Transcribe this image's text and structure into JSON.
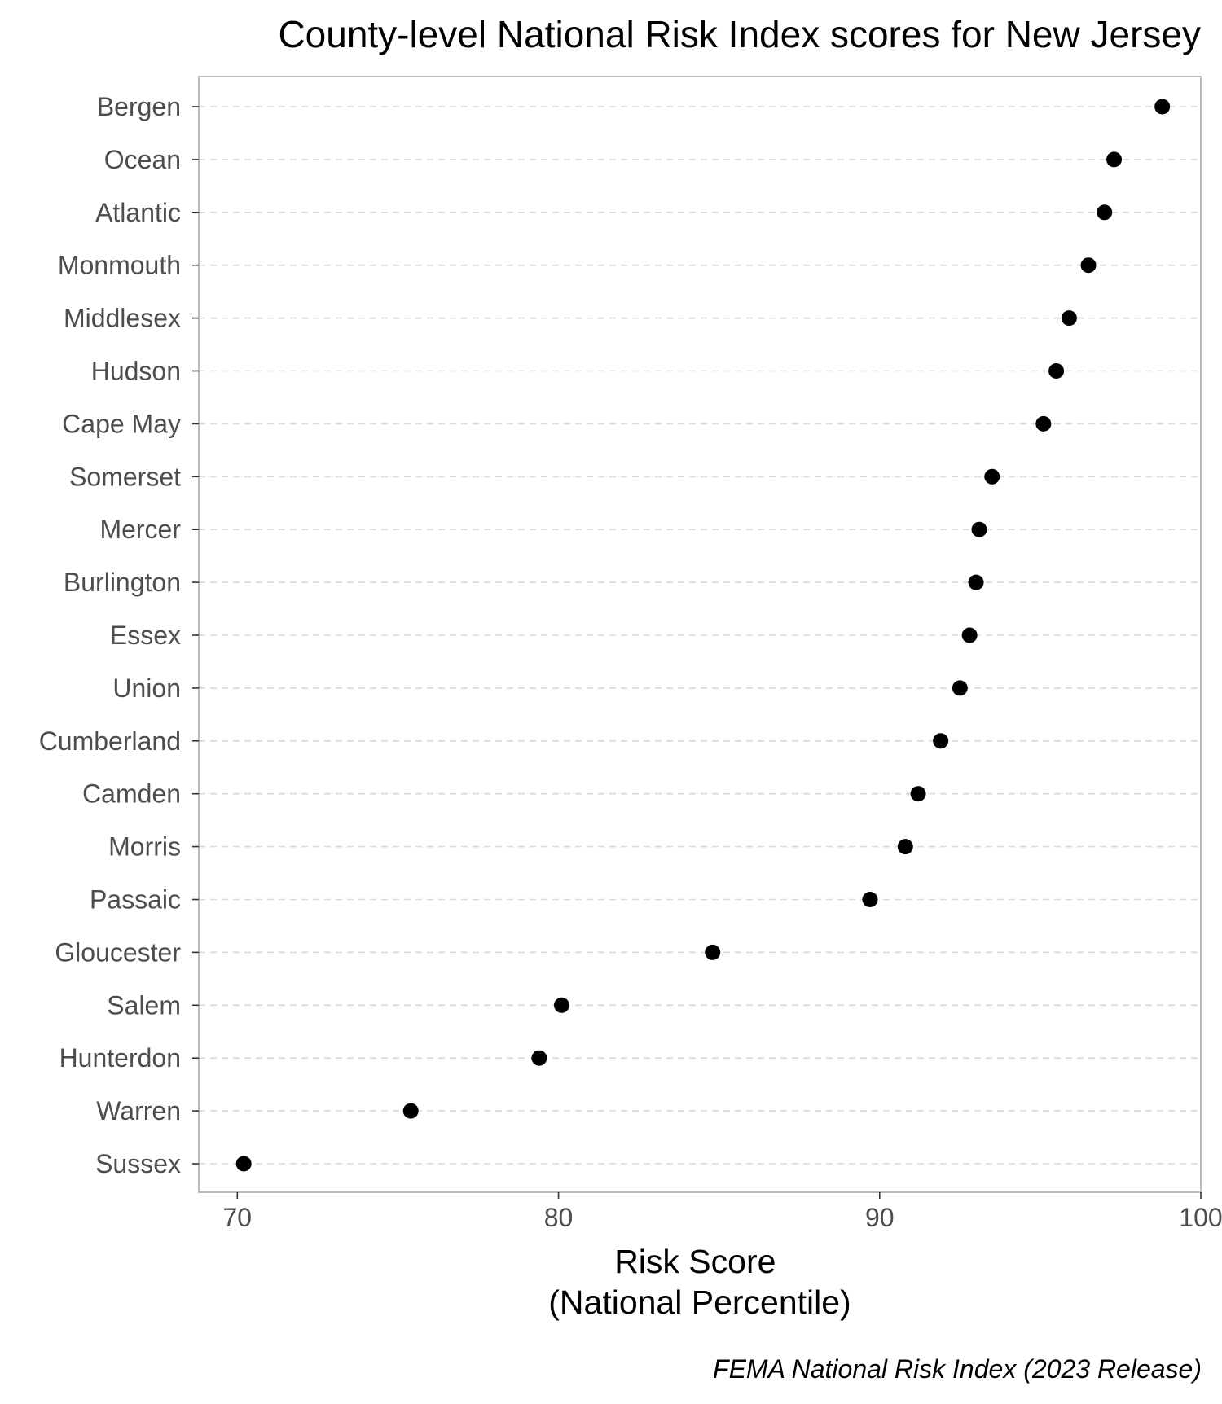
{
  "chart_data": {
    "type": "scatter",
    "title": "County-level National Risk Index scores for New Jersey",
    "xlabel_lines": [
      "Risk Score",
      "(National Percentile)"
    ],
    "ylabel": "",
    "caption": "FEMA National Risk Index (2023 Release)",
    "xlim": [
      68.8,
      100
    ],
    "x_ticks": [
      70,
      80,
      90,
      100
    ],
    "x_tick_labels": [
      "70",
      "80",
      "90",
      "100"
    ],
    "grid": "horizontal dashed",
    "legend": "none",
    "point_color": "#000000",
    "categories": [
      "Bergen",
      "Ocean",
      "Atlantic",
      "Monmouth",
      "Middlesex",
      "Hudson",
      "Cape May",
      "Somerset",
      "Mercer",
      "Burlington",
      "Essex",
      "Union",
      "Cumberland",
      "Camden",
      "Morris",
      "Passaic",
      "Gloucester",
      "Salem",
      "Hunterdon",
      "Warren",
      "Sussex"
    ],
    "values": [
      98.8,
      97.3,
      97.0,
      96.5,
      95.9,
      95.5,
      95.1,
      93.5,
      93.1,
      93.0,
      92.8,
      92.5,
      91.9,
      91.2,
      90.8,
      89.7,
      84.8,
      80.1,
      79.4,
      75.4,
      70.2
    ]
  }
}
